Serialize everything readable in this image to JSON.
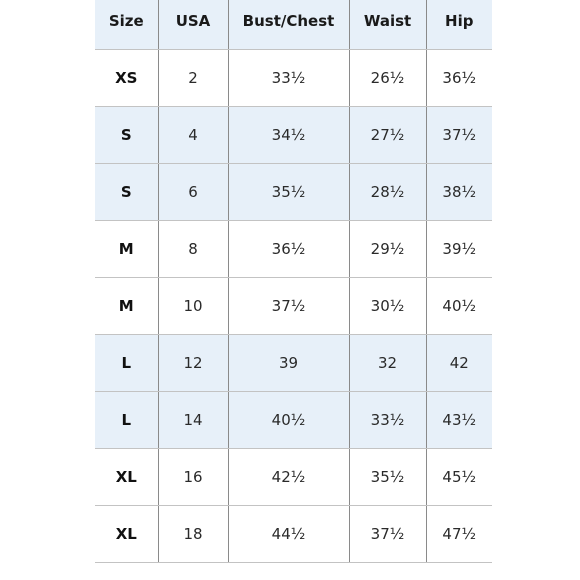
{
  "columns": [
    "Size",
    "USA",
    "Bust/Chest",
    "Waist",
    "Hip"
  ],
  "rows": [
    {
      "size": "XS",
      "usa": "2",
      "bust": "33½",
      "waist": "26½",
      "hip": "36½",
      "shaded": false
    },
    {
      "size": "S",
      "usa": "4",
      "bust": "34½",
      "waist": "27½",
      "hip": "37½",
      "shaded": true
    },
    {
      "size": "S",
      "usa": "6",
      "bust": "35½",
      "waist": "28½",
      "hip": "38½",
      "shaded": true
    },
    {
      "size": "M",
      "usa": "8",
      "bust": "36½",
      "waist": "29½",
      "hip": "39½",
      "shaded": false
    },
    {
      "size": "M",
      "usa": "10",
      "bust": "37½",
      "waist": "30½",
      "hip": "40½",
      "shaded": false
    },
    {
      "size": "L",
      "usa": "12",
      "bust": "39",
      "waist": "32",
      "hip": "42",
      "shaded": true
    },
    {
      "size": "L",
      "usa": "14",
      "bust": "40½",
      "waist": "33½",
      "hip": "43½",
      "shaded": true
    },
    {
      "size": "XL",
      "usa": "16",
      "bust": "42½",
      "waist": "35½",
      "hip": "45½",
      "shaded": false
    },
    {
      "size": "XL",
      "usa": "18",
      "bust": "44½",
      "waist": "37½",
      "hip": "47½",
      "shaded": false
    }
  ],
  "colors": {
    "shade": "#e7f0f9",
    "background": "#ffffff",
    "grid": "#8a8a8a"
  }
}
